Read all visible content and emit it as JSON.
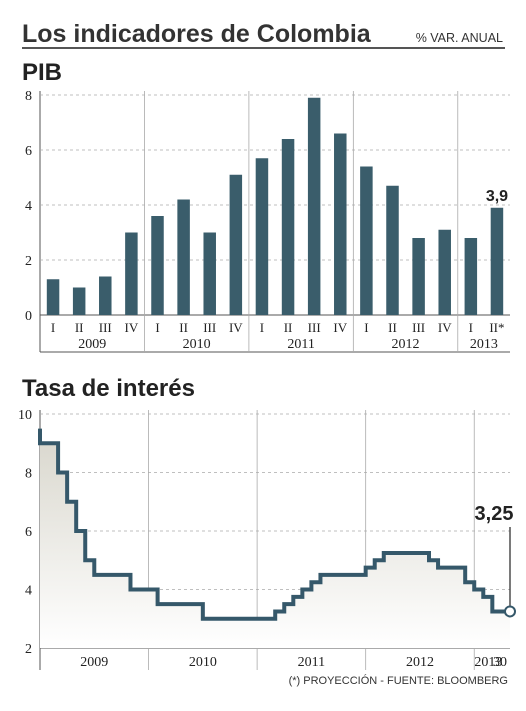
{
  "header": {
    "title": "Los indicadores de Colombia",
    "unit_note": "% VAR. ANUAL"
  },
  "colors": {
    "bar": "#3a5d6b",
    "line": "#35586a",
    "area_top": "#d8d6cc",
    "area_bottom": "#ffffff",
    "grid": "#aaaaaa",
    "rule": "#555555"
  },
  "source_note": "(*) PROYECCIÓN - FUENTE: BLOOMBERG",
  "chart_data": [
    {
      "type": "bar",
      "title": "PIB",
      "categories": [
        "I",
        "II",
        "III",
        "IV",
        "I",
        "II",
        "III",
        "IV",
        "I",
        "II",
        "III",
        "IV",
        "I",
        "II",
        "III",
        "IV",
        "I",
        "II*"
      ],
      "years": [
        {
          "label": "2009",
          "count": 4
        },
        {
          "label": "2010",
          "count": 4
        },
        {
          "label": "2011",
          "count": 4
        },
        {
          "label": "2012",
          "count": 4
        },
        {
          "label": "2013",
          "count": 2
        }
      ],
      "values": [
        1.3,
        1.0,
        1.4,
        3.0,
        3.6,
        4.2,
        3.0,
        5.1,
        5.7,
        6.4,
        7.9,
        6.6,
        5.4,
        4.7,
        2.8,
        3.1,
        2.8,
        3.9
      ],
      "ylim": [
        0,
        8
      ],
      "yticks": [
        0,
        2,
        4,
        6,
        8
      ],
      "annotation": {
        "index": 17,
        "text": "3,9"
      },
      "grid": true
    },
    {
      "type": "line",
      "title": "Tasa de interés",
      "x_start": "2009-01",
      "x_end": "2013-04-30",
      "x_labels": [
        "2009",
        "2010",
        "2011",
        "2012",
        "2013",
        "30"
      ],
      "points": [
        [
          "2009-01",
          9.5
        ],
        [
          "2009-01",
          9.0
        ],
        [
          "2009-03",
          8.0
        ],
        [
          "2009-04",
          7.0
        ],
        [
          "2009-05",
          6.0
        ],
        [
          "2009-06",
          5.0
        ],
        [
          "2009-07",
          4.5
        ],
        [
          "2009-10",
          4.5
        ],
        [
          "2009-11",
          4.0
        ],
        [
          "2010-01",
          4.0
        ],
        [
          "2010-02",
          3.5
        ],
        [
          "2010-06",
          3.5
        ],
        [
          "2010-07",
          3.0
        ],
        [
          "2011-02",
          3.0
        ],
        [
          "2011-03",
          3.25
        ],
        [
          "2011-04",
          3.5
        ],
        [
          "2011-05",
          3.75
        ],
        [
          "2011-06",
          4.0
        ],
        [
          "2011-07",
          4.25
        ],
        [
          "2011-08",
          4.5
        ],
        [
          "2011-12",
          4.5
        ],
        [
          "2012-01",
          4.75
        ],
        [
          "2012-02",
          5.0
        ],
        [
          "2012-03",
          5.25
        ],
        [
          "2012-07",
          5.25
        ],
        [
          "2012-08",
          5.0
        ],
        [
          "2012-09",
          4.75
        ],
        [
          "2012-11",
          4.75
        ],
        [
          "2012-12",
          4.25
        ],
        [
          "2013-01",
          4.0
        ],
        [
          "2013-02",
          3.75
        ],
        [
          "2013-03",
          3.25
        ],
        [
          "2013-04-30",
          3.25
        ]
      ],
      "ylim": [
        2,
        10
      ],
      "yticks": [
        2,
        4,
        6,
        8,
        10
      ],
      "annotation": {
        "text": "3,25"
      },
      "grid": true,
      "step": true,
      "area_fill": true
    }
  ]
}
